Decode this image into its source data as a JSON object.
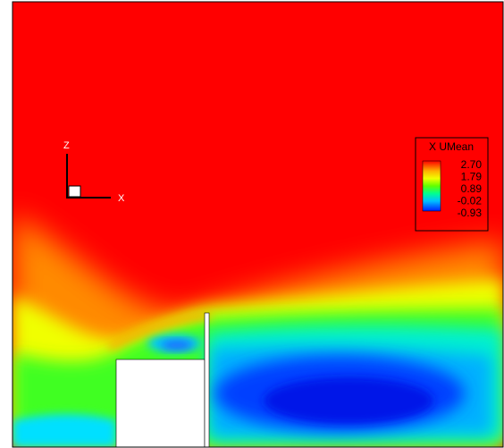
{
  "chart_data": {
    "type": "heatmap",
    "title": "",
    "variable": "X UMean",
    "colorbar": {
      "title": "X UMean",
      "ticks": [
        "2.70",
        "1.79",
        "0.89",
        "-0.02",
        "-0.93"
      ],
      "range": [
        -0.93,
        2.7
      ],
      "colors": [
        "#ff0000",
        "#ff9900",
        "#f0ff00",
        "#70ff00",
        "#00ff80",
        "#00c8ff",
        "#0030ff"
      ],
      "placement": "right"
    },
    "axes_triad": {
      "vertical": "Z",
      "horizontal": "X"
    },
    "grid": false,
    "field_features": [
      "free stream region near 2.70",
      "low velocity recirculation region near -0.93 behind the wall",
      "solid block obstacle",
      "thin vertical wall"
    ]
  }
}
